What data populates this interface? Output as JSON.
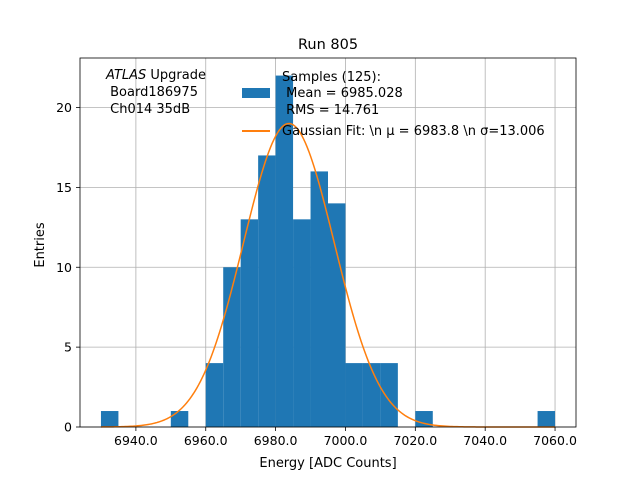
{
  "chart_data": {
    "type": "bar",
    "title": "Run 805",
    "xlabel": "Energy [ADC Counts]",
    "ylabel": "Entries",
    "xlim": [
      6924.0,
      7066.0
    ],
    "ylim": [
      0,
      23.1
    ],
    "xticks": [
      6940,
      6960,
      6980,
      7000,
      7020,
      7040,
      7060
    ],
    "xtick_labels": [
      "6940.0",
      "6960.0",
      "6980.0",
      "7000.0",
      "7020.0",
      "7040.0",
      "7060.0"
    ],
    "yticks": [
      0,
      5,
      10,
      15,
      20
    ],
    "ytick_labels": [
      "0",
      "5",
      "10",
      "15",
      "20"
    ],
    "grid": true,
    "annotation": {
      "lines": [
        {
          "italic": "ATLAS",
          "rest": " Upgrade"
        },
        {
          "italic": "",
          "rest": " Board186975"
        },
        {
          "italic": "",
          "rest": " Ch014 35dB"
        }
      ]
    },
    "histogram": {
      "color": "#1f77b4",
      "bin_edges": [
        6930,
        6935,
        6940,
        6945,
        6950,
        6955,
        6960,
        6965,
        6970,
        6975,
        6980,
        6985,
        6990,
        6995,
        7000,
        7005,
        7010,
        7015,
        7020,
        7025,
        7030,
        7035,
        7040,
        7045,
        7050,
        7055,
        7060
      ],
      "counts": [
        1,
        0,
        0,
        0,
        1,
        0,
        4,
        10,
        13,
        17,
        22,
        13,
        16,
        14,
        4,
        4,
        4,
        0,
        1,
        0,
        0,
        0,
        0,
        0,
        0,
        1
      ]
    },
    "fit": {
      "color": "#ff7f0e",
      "mu": 6983.8,
      "sigma": 13.006,
      "amplitude": 19.0,
      "x_range": [
        6930,
        7060
      ]
    },
    "legend": {
      "placement": "upper-center",
      "entries": [
        {
          "kind": "patch",
          "color": "#1f77b4",
          "lines": [
            "Samples (125):",
            " Mean = 6985.028",
            " RMS = 14.761"
          ]
        },
        {
          "kind": "line",
          "color": "#ff7f0e",
          "lines": [
            "Gaussian Fit: \\n μ = 6983.8 \\n σ=13.006"
          ]
        }
      ]
    }
  }
}
